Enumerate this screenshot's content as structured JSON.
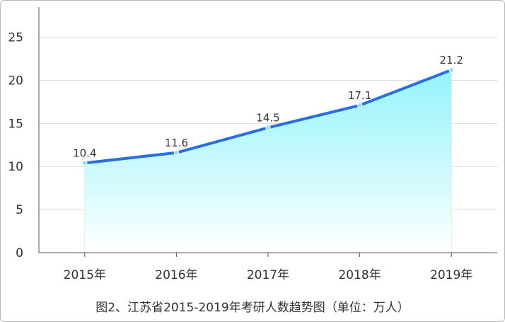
{
  "caption": "图2、江苏省2015-2019年考研人数趋势图（单位：万人）",
  "colors": {
    "line": "#2a6fdb",
    "area_top": "#8ff3fb",
    "area_bottom": "#ffffff",
    "grid": "#dddddd",
    "axis": "#555555",
    "point": "#7fe6f2"
  },
  "chart_data": {
    "type": "area",
    "title": "",
    "xlabel": "",
    "ylabel": "",
    "categories": [
      "2015年",
      "2016年",
      "2017年",
      "2018年",
      "2019年"
    ],
    "values": [
      10.4,
      11.6,
      14.5,
      17.1,
      21.2
    ],
    "value_labels": [
      "10.4",
      "11.6",
      "14.5",
      "17.1",
      "21.2"
    ],
    "y_ticks": [
      "0",
      "5",
      "10",
      "15",
      "20",
      "25"
    ],
    "ylim": [
      0,
      28.5
    ],
    "grid": true,
    "legend": "none"
  }
}
